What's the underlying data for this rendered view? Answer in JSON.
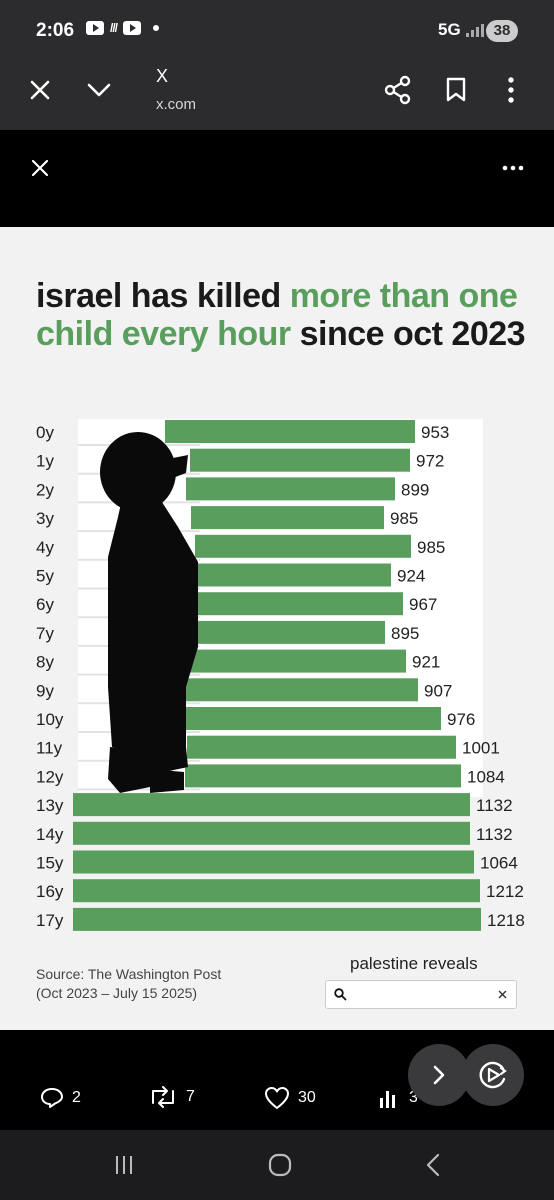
{
  "status_bar": {
    "time": "2:06",
    "network": "5G",
    "battery": "38"
  },
  "toolbar": {
    "title": "X",
    "url": "x.com"
  },
  "post_image": {
    "title_parts": [
      {
        "text": "israel has killed ",
        "color": "#1a1a1a"
      },
      {
        "text": "more than one child every hour",
        "color": "#5a9e5e"
      },
      {
        "text": " since oct 2023",
        "color": "#1a1a1a"
      }
    ],
    "source_line1": "Source: The Washington Post",
    "source_line2": "(Oct 2023 – July 15 2025)",
    "credit": "palestine reveals"
  },
  "chart_data": {
    "type": "bar",
    "orientation": "horizontal",
    "title": "israel has killed more than one child every hour since oct 2023",
    "categories": [
      "0y",
      "1y",
      "2y",
      "3y",
      "4y",
      "5y",
      "6y",
      "7y",
      "8y",
      "9y",
      "10y",
      "11y",
      "12y",
      "13y",
      "14y",
      "15y",
      "16y",
      "17y"
    ],
    "values": [
      953,
      972,
      899,
      985,
      985,
      924,
      967,
      895,
      921,
      907,
      976,
      1001,
      1084,
      1132,
      1132,
      1064,
      1212,
      1218
    ],
    "bar_color": "#5a9e5e"
  },
  "actions": {
    "replies": "2",
    "reposts": "7",
    "likes": "30",
    "views": "3"
  }
}
